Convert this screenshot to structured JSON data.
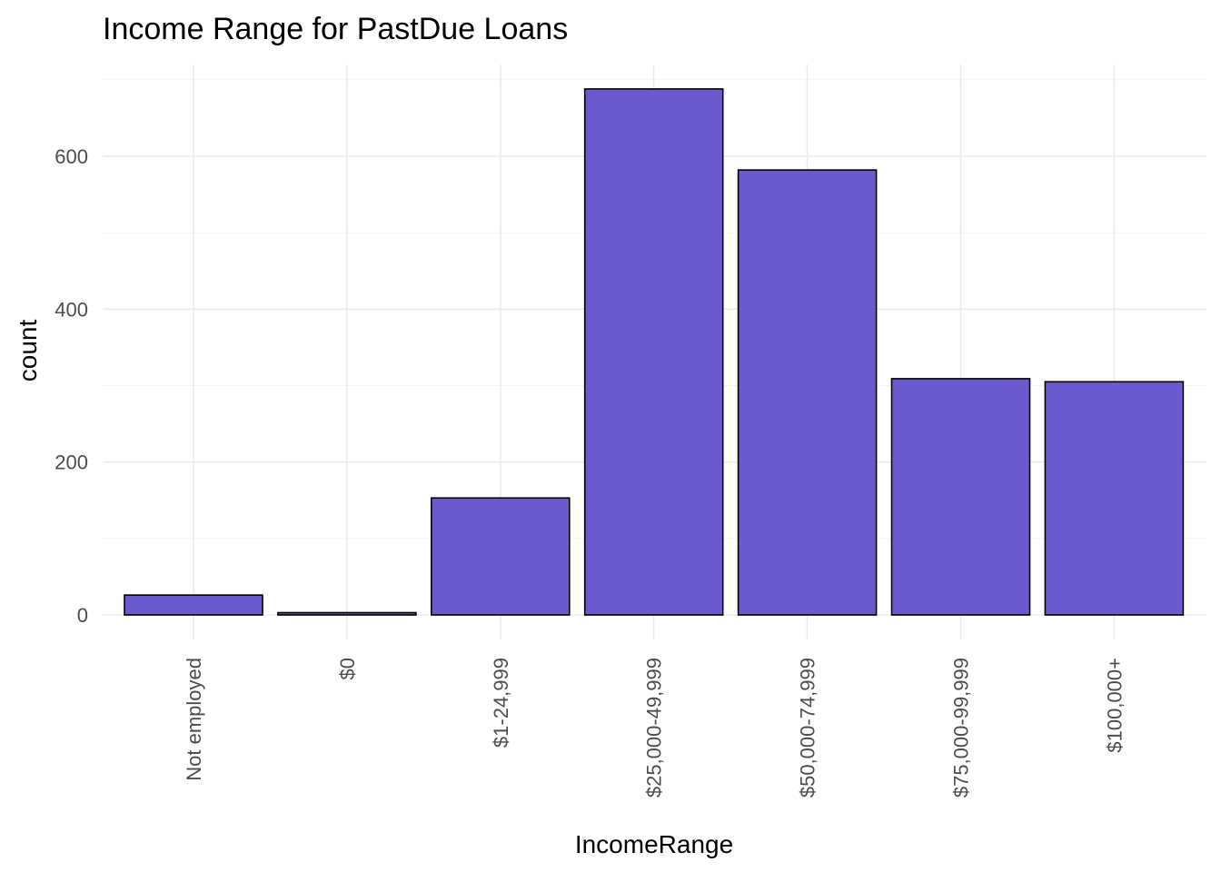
{
  "chart_data": {
    "type": "bar",
    "title": "Income Range for PastDue Loans",
    "xlabel": "IncomeRange",
    "ylabel": "count",
    "categories": [
      "Not employed",
      "$0",
      "$1-24,999",
      "$25,000-49,999",
      "$50,000-74,999",
      "$75,000-99,999",
      "$100,000+"
    ],
    "values": [
      26,
      3,
      153,
      688,
      582,
      309,
      305
    ],
    "ylim": [
      -33,
      720
    ],
    "yticks": [
      0,
      200,
      400,
      600
    ],
    "ytick_labels": [
      "0",
      "200",
      "400",
      "600"
    ],
    "grid": true,
    "colors": {
      "bar_fill": "#6a5acd",
      "bar_outline": "#000000"
    }
  }
}
